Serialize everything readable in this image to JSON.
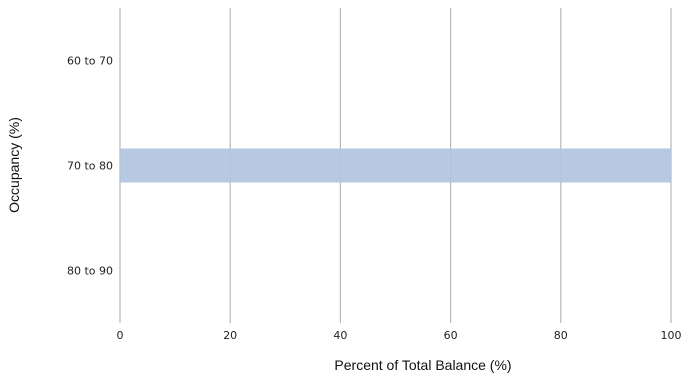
{
  "chart_data": {
    "type": "bar",
    "orientation": "horizontal",
    "title": "",
    "xlabel": "Percent of Total Balance (%)",
    "ylabel": "Occupancy (%)",
    "categories": [
      "60 to 70",
      "70 to 80",
      "80 to 90"
    ],
    "values": [
      0,
      100,
      0
    ],
    "xlim": [
      0,
      100
    ],
    "xticks": [
      "0",
      "20",
      "40",
      "60",
      "80",
      "100"
    ],
    "grid": "vertical",
    "legend": "none",
    "bar_color": "#b0c4de",
    "grid_color": "#b8b8b8"
  }
}
